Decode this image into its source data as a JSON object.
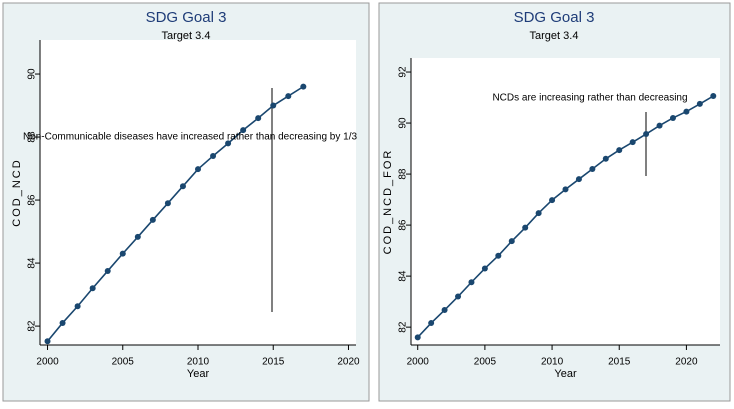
{
  "chart_data": [
    {
      "type": "line",
      "title": "SDG Goal 3",
      "subtitle": "Target 3.4",
      "x_label": "Year",
      "y_label": "COD_NCD",
      "annotation": "Non-Communicable diseases have increased rather than decreasing by 1/3",
      "x": [
        2000,
        2001,
        2002,
        2003,
        2004,
        2005,
        2006,
        2007,
        2008,
        2009,
        2010,
        2011,
        2012,
        2013,
        2014,
        2015,
        2016,
        2017
      ],
      "series": [
        {
          "name": "COD_NCD",
          "color": "#1a476f",
          "values": [
            81.52,
            82.1,
            82.63,
            83.2,
            83.75,
            84.3,
            84.83,
            85.37,
            85.9,
            86.44,
            86.98,
            87.4,
            87.8,
            88.22,
            88.6,
            89.0,
            89.3,
            89.6
          ]
        }
      ],
      "xlim": [
        1999.5,
        2020.5
      ],
      "xticks": [
        2000,
        2005,
        2010,
        2015,
        2020
      ],
      "ylim": [
        81.4,
        91.08
      ],
      "yticks": [
        82,
        84,
        86,
        88,
        90
      ]
    },
    {
      "type": "line",
      "title": "SDG Goal 3",
      "subtitle": "Target 3.4",
      "x_label": "Year",
      "y_label": "COD_NCD_FOR",
      "annotation": "NCDs are increasing rather than decreasing",
      "x": [
        2000,
        2001,
        2002,
        2003,
        2004,
        2005,
        2006,
        2007,
        2008,
        2009,
        2010,
        2011,
        2012,
        2013,
        2014,
        2015,
        2016,
        2017,
        2018,
        2019,
        2020,
        2021,
        2022
      ],
      "series": [
        {
          "name": "COD_NCD_FOR",
          "color": "#1a476f",
          "values": [
            81.6,
            82.16,
            82.67,
            83.2,
            83.76,
            84.3,
            84.8,
            85.37,
            85.9,
            86.47,
            86.98,
            87.4,
            87.8,
            88.2,
            88.6,
            88.94,
            89.25,
            89.57,
            89.9,
            90.2,
            90.45,
            90.75,
            91.06
          ]
        }
      ],
      "xlim": [
        1999.5,
        2022.5
      ],
      "xticks": [
        2000,
        2005,
        2010,
        2015,
        2020
      ],
      "ylim": [
        81.3,
        92.55
      ],
      "yticks": [
        82,
        84,
        86,
        88,
        90,
        92
      ]
    }
  ]
}
